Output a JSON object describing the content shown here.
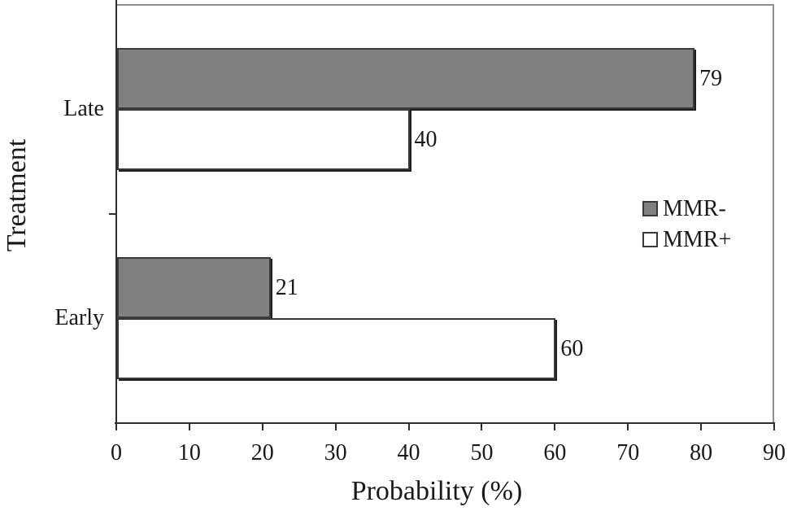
{
  "figure": {
    "x_axis_title": "Probability (%)",
    "y_axis_title": "Treatment"
  },
  "chart_data": {
    "type": "bar",
    "orientation": "horizontal",
    "title": "",
    "xlabel": "Probability (%)",
    "ylabel": "Treatment",
    "xlim": [
      0,
      90
    ],
    "xticks": [
      0,
      10,
      20,
      30,
      40,
      50,
      60,
      70,
      80,
      90
    ],
    "categories": [
      "Late",
      "Early"
    ],
    "series": [
      {
        "name": "MMR-",
        "fill": "#808080",
        "values": [
          79,
          21
        ]
      },
      {
        "name": "MMR+",
        "fill": "#ffffff",
        "values": [
          40,
          60
        ]
      }
    ],
    "bar_value_labels": [
      {
        "category": "Late",
        "series": "MMR-",
        "label": "79"
      },
      {
        "category": "Late",
        "series": "MMR+",
        "label": "40"
      },
      {
        "category": "Early",
        "series": "MMR-",
        "label": "21"
      },
      {
        "category": "Early",
        "series": "MMR+",
        "label": "60"
      }
    ],
    "legend_position": "middle-right",
    "grid": false
  },
  "legend": {
    "items": [
      {
        "label": "MMR-",
        "swatch": "#808080"
      },
      {
        "label": "MMR+",
        "swatch": "#ffffff"
      }
    ]
  },
  "colors": {
    "bar_gray": "#808080",
    "bar_white": "#ffffff",
    "bar_border": "#3a3a3a",
    "bar_shadow": "#1f1f1f",
    "axis_line": "#2e2e2e",
    "plot_border": "#909090",
    "text": "#1a1a1a",
    "background": "#ffffff"
  }
}
